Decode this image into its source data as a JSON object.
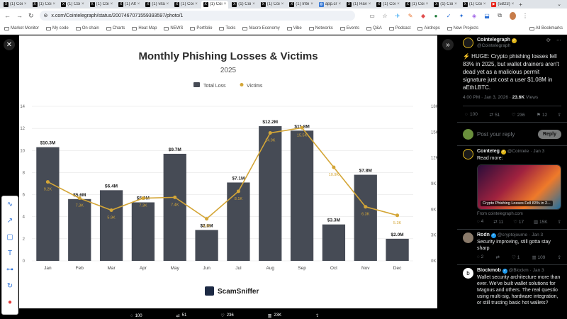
{
  "browser": {
    "tabs": [
      {
        "icon": "x-icon",
        "label": "(1) Coi"
      },
      {
        "icon": "x-icon",
        "label": "(1) Coi"
      },
      {
        "icon": "x-icon",
        "label": "(1) Coi"
      },
      {
        "icon": "x-icon",
        "label": "(1) Coi"
      },
      {
        "icon": "x-icon",
        "label": "(1) Alt"
      },
      {
        "icon": "x-icon",
        "label": "(1) vita"
      },
      {
        "icon": "x-icon",
        "label": "(1) Coi"
      },
      {
        "icon": "x-icon",
        "label": "(1) Coi",
        "active": true
      },
      {
        "icon": "x-icon",
        "label": "(1) Coi"
      },
      {
        "icon": "x-icon",
        "label": "(1) Coi"
      },
      {
        "icon": "x-icon",
        "label": "(1) Inte"
      },
      {
        "icon": "web-icon",
        "label": "app.cr"
      },
      {
        "icon": "x-icon",
        "label": "(1) Hav"
      },
      {
        "icon": "x-icon",
        "label": "(1) Coi"
      },
      {
        "icon": "x-icon",
        "label": "(1) Coi"
      },
      {
        "icon": "x-icon",
        "label": "(1) Coi"
      },
      {
        "icon": "x-icon",
        "label": "(1) Coi"
      },
      {
        "icon": "youtube-icon",
        "label": "(5823)"
      }
    ],
    "url": "x.com/Cointelegraph/status/2007467071559393597/photo/1",
    "bookmarks": [
      "Market Monitor",
      "My code",
      "On chain",
      "Charts",
      "Heat Map",
      "NEWS",
      "Portfolio",
      "Tools",
      "Macro Economy",
      "Vibe",
      "Networks",
      "Events",
      "Q&A",
      "Podcast",
      "Airdrops",
      "New Projects"
    ],
    "all_bookmarks": "All Bookmarks"
  },
  "colors": {
    "bar": "#464b55",
    "line": "#d4a637",
    "accent": "#1d9bf0"
  },
  "chart_data": {
    "type": "bar",
    "title": "Monthly Phishing Losses & Victims",
    "subtitle": "2025",
    "categories": [
      "Jan",
      "Feb",
      "Mar",
      "Apr",
      "May",
      "Jun",
      "Jul",
      "Aug",
      "Sep",
      "Oct",
      "Nov",
      "Dec"
    ],
    "series": [
      {
        "name": "Total Loss",
        "type": "bar",
        "axis": "left",
        "values": [
          10.3,
          5.6,
          6.4,
          5.3,
          9.7,
          2.8,
          7.1,
          12.2,
          11.8,
          3.3,
          7.8,
          2.0
        ],
        "labels": [
          "$10.3M",
          "$5.6M",
          "$6.4M",
          "$5.3M",
          "$9.7M",
          "$2.8M",
          "$7.1M",
          "$12.2M",
          "$11.8M",
          "$3.3M",
          "$7.8M",
          "$2.0M"
        ]
      },
      {
        "name": "Victims",
        "type": "line",
        "axis": "right",
        "values": [
          9200,
          7300,
          5900,
          7300,
          7400,
          4900,
          8100,
          14900,
          15500,
          10900,
          6300,
          5300
        ],
        "labels": [
          "9.2K",
          "7.3K",
          "5.9K",
          "7.3K",
          "7.4K",
          "4.9K",
          "8.1K",
          "14.9K",
          "15.5K",
          "10.9K",
          "6.3K",
          "5.3K"
        ]
      }
    ],
    "yleft": {
      "min": 0,
      "max": 14,
      "ticks": [
        "0",
        "2",
        "4",
        "6",
        "8",
        "10",
        "12",
        "14"
      ]
    },
    "yright": {
      "min": 0,
      "max": 18000,
      "ticks": [
        "0K",
        "3K",
        "6K",
        "9K",
        "12K",
        "15K",
        "18K"
      ]
    },
    "legend": "top-center",
    "grid": true,
    "logo": "ScamSniffer"
  },
  "viewer": {
    "reply_count": "100",
    "repost_count": "51",
    "like_count": "236",
    "view_count": "23K"
  },
  "sidebar": {
    "main": {
      "name": "Cointelegraph",
      "handle": "@Cointelegraph",
      "text": "⚡ HUGE: Crypto phishing losses fell 83% in 2025, but wallet drainers aren't dead yet as a malicious permit signature just cost a user $1.08M in aEthLBTC.",
      "time": "4:00 PM · Jan 3, 2026 ·",
      "views": "23.6K",
      "views_label": "Views",
      "replies": "100",
      "reposts": "51",
      "likes": "236",
      "bookmarks": "12"
    },
    "reply_placeholder": "Post your reply",
    "reply_button": "Reply",
    "replies": [
      {
        "name": "Cointeleg",
        "handle": "@Cointele",
        "time": "Jan 3",
        "text": "Read more:",
        "card_caption": "Crypto Phishing Losses Fell 83% in 2...",
        "card_source": "From cointelegraph.com",
        "r": "4",
        "rt": "11",
        "l": "17",
        "v": "15K"
      },
      {
        "name": "Rodn",
        "handle": "@cryptojourne",
        "time": "Jan 3",
        "text": "Security improving, still gotta stay sharp",
        "r": "2",
        "rt": "",
        "l": "1",
        "v": "109"
      },
      {
        "name": "Blockmob",
        "handle": "@Blockm",
        "time": "Jan 3",
        "text": "Wallet security architecture more than ever. We've built wallet solutions for Magnus and others. The real questio using multi-sig, hardware integration, or still trusting basic hot wallets?"
      }
    ]
  }
}
